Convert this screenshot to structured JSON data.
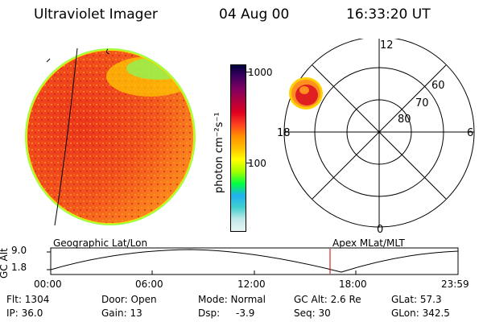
{
  "header": {
    "instrument": "Ultraviolet Imager",
    "date": "04 Aug 00",
    "time": "16:33:20 UT"
  },
  "colorbar": {
    "unit_label": "photon cm⁻²s⁻¹",
    "ticks": [
      "1000",
      "100"
    ],
    "stops": [
      "#e8f4f4",
      "#c0e8e8",
      "#40d0d0",
      "#20b0f0",
      "#00ff40",
      "#a0ff00",
      "#ffff00",
      "#ffc000",
      "#ff9000",
      "#ff4020",
      "#e00020",
      "#b00040",
      "#800060",
      "#400060",
      "#000040"
    ]
  },
  "polar": {
    "mlt_labels": {
      "top": "12",
      "left": "18",
      "right": "6",
      "bottom": "0"
    },
    "lat_labels": [
      "60",
      "70",
      "80"
    ]
  },
  "timeline": {
    "y_title": "GC Alt",
    "y_ticks": [
      "9.0",
      "1.8"
    ],
    "left_label": "Geographic Lat/Lon",
    "right_label": "Apex MLat/MLT",
    "x_ticks": [
      "00:00",
      "06:00",
      "12:00",
      "18:00",
      "23:59"
    ],
    "marker_color": "#cc0000"
  },
  "info": {
    "flt": "Flt: 1304",
    "ip": "IP: 36.0",
    "door": "Door: Open",
    "gain": "Gain: 13",
    "mode": "Mode: Normal",
    "dsp_label": "Dsp:",
    "dsp_value": "-3.9",
    "gc_alt": "GC Alt: 2.6 Re",
    "seq": "Seq: 30",
    "glat": "GLat: 57.3",
    "glon": "GLon: 342.5"
  }
}
